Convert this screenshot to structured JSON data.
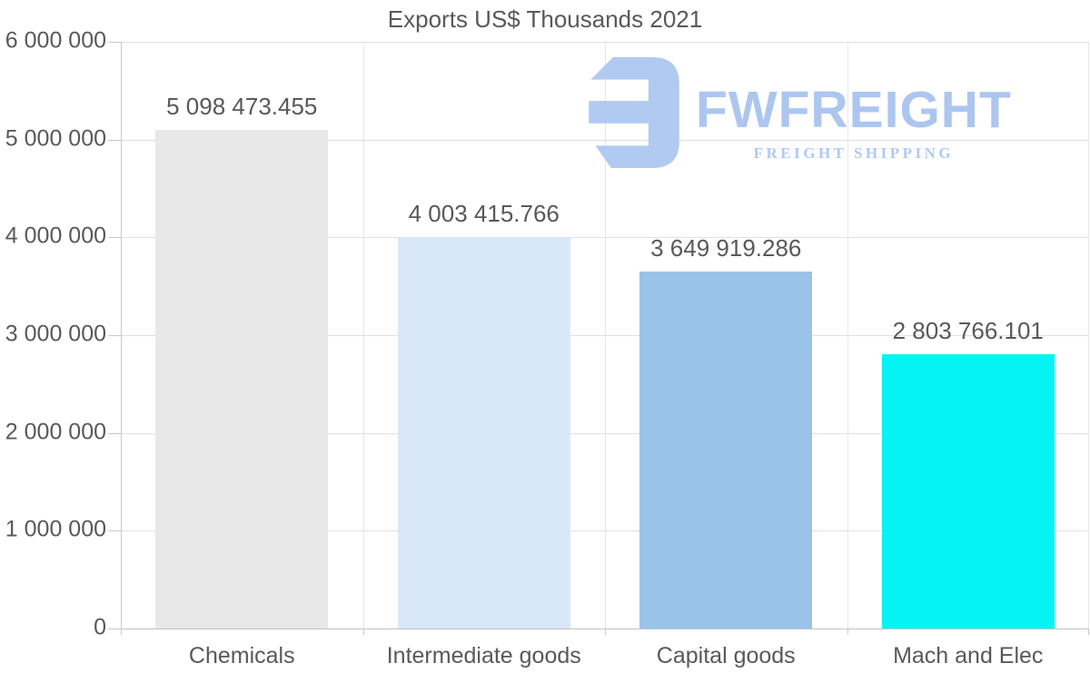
{
  "title": "Exports US$ Thousands 2021",
  "watermark": {
    "brand": "FWFREIGHT",
    "tagline": "FREIGHT SHIPPING",
    "logo_icon": "fwfreight-reversed-e-mark",
    "color": "#a9c5ef"
  },
  "colors": {
    "background": "#ffffff",
    "text": "#595959",
    "grid": "#e0e0e0",
    "axis": "#c9c9c9"
  },
  "chart_data": {
    "type": "bar",
    "title": "Exports US$ Thousands 2021",
    "categories": [
      "Chemicals",
      "Intermediate goods",
      "Capital goods",
      "Mach and Elec"
    ],
    "values": [
      5098473.455,
      4003415.766,
      3649919.286,
      2803766.101
    ],
    "value_labels": [
      "5 098 473.455",
      "4 003 415.766",
      "3 649 919.286",
      "2 803 766.101"
    ],
    "bar_colors": [
      "#e8e8e8",
      "#d9e8f8",
      "#99c3e8",
      "#05f3f3"
    ],
    "xlabel": "",
    "ylabel": "",
    "ylim": [
      0,
      6000000
    ],
    "ytick_values": [
      0,
      1000000,
      2000000,
      3000000,
      4000000,
      5000000,
      6000000
    ],
    "ytick_labels": [
      "0",
      "1 000 000",
      "2 000 000",
      "3 000 000",
      "4 000 000",
      "5 000 000",
      "6 000 000"
    ],
    "grid": true,
    "legend": false
  }
}
